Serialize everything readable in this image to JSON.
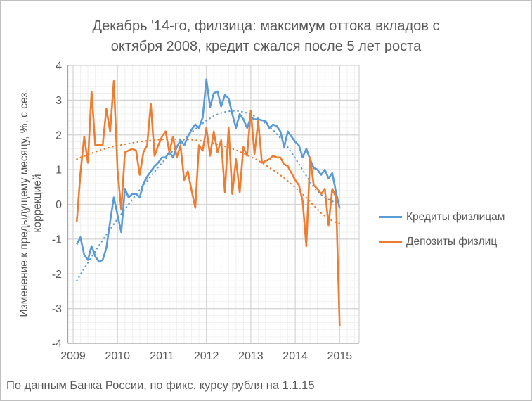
{
  "title_lines": [
    "Декабрь '14-го, филзица: максимум оттока вкладов с",
    "октября 2008, кредит сжался после 5 лет роста"
  ],
  "footer": "По данным Банка России, по фикс. курсу рубля на 1.1.15",
  "y_axis": {
    "title_lines": [
      "Изменение  к предыдущему месяцу, %, с сез.",
      "коррекцией"
    ],
    "ticks": [
      4,
      3,
      2,
      1,
      0,
      -1,
      -2,
      -3,
      -4
    ]
  },
  "x_axis": {
    "ticks": [
      "2009",
      "2010",
      "2011",
      "2012",
      "2013",
      "2014",
      "2015"
    ]
  },
  "legend": {
    "items": [
      {
        "label": "Кредиты физлицам",
        "color": "#5B9BD5"
      },
      {
        "label": "Депозиты физлиц",
        "color": "#ED7D31"
      }
    ]
  },
  "colors": {
    "credits": "#5B9BD5",
    "deposits": "#ED7D31",
    "grid_major": "#d4d4d4",
    "grid_minor": "#f0f0f0",
    "axis_line": "#a6a6a6",
    "text": "#595959"
  },
  "chart_data": {
    "type": "line",
    "title": "Декабрь '14-го, филзица: максимум оттока вкладов с октября 2008, кредит сжался после 5 лет роста",
    "xlabel": "",
    "ylabel": "Изменение к предыдущему месяцу, %, с сез. коррекцией",
    "ylim": [
      -4,
      4
    ],
    "y_tick_step": 1,
    "grid": "major+minor",
    "legend_position": "right",
    "x_unit": "month",
    "x_start": "2009-01",
    "x_end": "2014-12",
    "x_tick_labels": [
      "2009",
      "2010",
      "2011",
      "2012",
      "2013",
      "2014",
      "2015"
    ],
    "footnote": "По данным Банка России, по фикс. курсу рубля на 1.1.15",
    "series": [
      {
        "name": "Кредиты физлицам",
        "color": "#5B9BD5",
        "style": "solid",
        "in_legend": true,
        "values": [
          -1.15,
          -0.95,
          -1.45,
          -1.6,
          -1.2,
          -1.5,
          -1.65,
          -1.6,
          -1.25,
          -0.5,
          0.2,
          -0.3,
          -0.8,
          0.45,
          0.2,
          0.3,
          0.3,
          0.2,
          0.6,
          0.8,
          0.95,
          1.1,
          1.2,
          1.35,
          1.35,
          1.5,
          1.35,
          1.65,
          1.85,
          1.7,
          1.95,
          2.15,
          2.3,
          2.2,
          2.5,
          3.6,
          2.8,
          3.2,
          3.25,
          2.82,
          3.15,
          3.05,
          2.6,
          2.2,
          2.6,
          2.45,
          2.2,
          2.5,
          2.45,
          2.45,
          2.42,
          2.4,
          2.2,
          2.3,
          2.25,
          2.1,
          1.65,
          2.1,
          1.95,
          1.8,
          1.7,
          1.35,
          1.6,
          1.3,
          1.05,
          1.0,
          0.85,
          1.0,
          0.75,
          0.9,
          0.35,
          -0.12
        ]
      },
      {
        "name": "Депозиты физлиц",
        "color": "#ED7D31",
        "style": "solid",
        "in_legend": true,
        "values": [
          -0.5,
          0.9,
          1.95,
          1.2,
          3.25,
          1.7,
          1.72,
          1.7,
          2.75,
          2.1,
          3.55,
          1.0,
          -0.15,
          1.5,
          1.55,
          1.6,
          1.55,
          0.85,
          1.5,
          1.7,
          2.9,
          1.4,
          1.7,
          1.95,
          2.1,
          1.5,
          1.95,
          1.35,
          1.7,
          0.7,
          0.95,
          0.4,
          -0.1,
          1.7,
          1.55,
          2.2,
          1.4,
          2.1,
          1.5,
          1.85,
          0.35,
          2.2,
          0.3,
          1.3,
          0.35,
          1.65,
          1.4,
          2.7,
          1.45,
          2.4,
          1.2,
          1.25,
          1.3,
          1.4,
          1.35,
          1.35,
          1.15,
          1.1,
          0.9,
          0.7,
          0.55,
          0.1,
          -1.2,
          1.35,
          0.55,
          0.45,
          0.3,
          0.45,
          -0.6,
          0.45,
          0.2,
          -3.5
        ]
      },
      {
        "name": "Кредиты физлицам (полиномиальный тренд)",
        "color": "#5B9BD5",
        "style": "dotted",
        "in_legend": false,
        "values": [
          -2.2,
          -2.02,
          -1.85,
          -1.68,
          -1.51,
          -1.35,
          -1.19,
          -1.03,
          -0.87,
          -0.72,
          -0.57,
          -0.42,
          -0.28,
          -0.14,
          0.0,
          0.14,
          0.28,
          0.42,
          0.55,
          0.68,
          0.81,
          0.94,
          1.07,
          1.19,
          1.31,
          1.43,
          1.55,
          1.66,
          1.77,
          1.87,
          1.97,
          2.07,
          2.16,
          2.25,
          2.33,
          2.41,
          2.48,
          2.54,
          2.59,
          2.63,
          2.66,
          2.68,
          2.69,
          2.69,
          2.68,
          2.66,
          2.63,
          2.59,
          2.54,
          2.48,
          2.41,
          2.33,
          2.24,
          2.14,
          2.03,
          1.91,
          1.78,
          1.64,
          1.49,
          1.33,
          1.16,
          0.99,
          0.82,
          0.65,
          0.49,
          0.38,
          0.28,
          0.2,
          0.14,
          0.09,
          0.06,
          0.05
        ]
      },
      {
        "name": "Депозиты физлиц (полиномиальный тренд)",
        "color": "#ED7D31",
        "style": "dotted",
        "in_legend": false,
        "values": [
          1.3,
          1.35,
          1.39,
          1.43,
          1.47,
          1.51,
          1.55,
          1.58,
          1.61,
          1.64,
          1.67,
          1.69,
          1.71,
          1.73,
          1.75,
          1.77,
          1.79,
          1.8,
          1.82,
          1.83,
          1.84,
          1.85,
          1.86,
          1.87,
          1.87,
          1.88,
          1.88,
          1.88,
          1.88,
          1.87,
          1.87,
          1.86,
          1.85,
          1.84,
          1.82,
          1.8,
          1.78,
          1.76,
          1.73,
          1.7,
          1.67,
          1.64,
          1.6,
          1.56,
          1.52,
          1.47,
          1.42,
          1.37,
          1.32,
          1.26,
          1.2,
          1.13,
          1.06,
          0.99,
          0.92,
          0.84,
          0.76,
          0.67,
          0.58,
          0.49,
          0.39,
          0.29,
          0.19,
          0.08,
          -0.03,
          -0.14,
          -0.25,
          -0.33,
          -0.41,
          -0.47,
          -0.52,
          -0.55
        ]
      }
    ]
  }
}
